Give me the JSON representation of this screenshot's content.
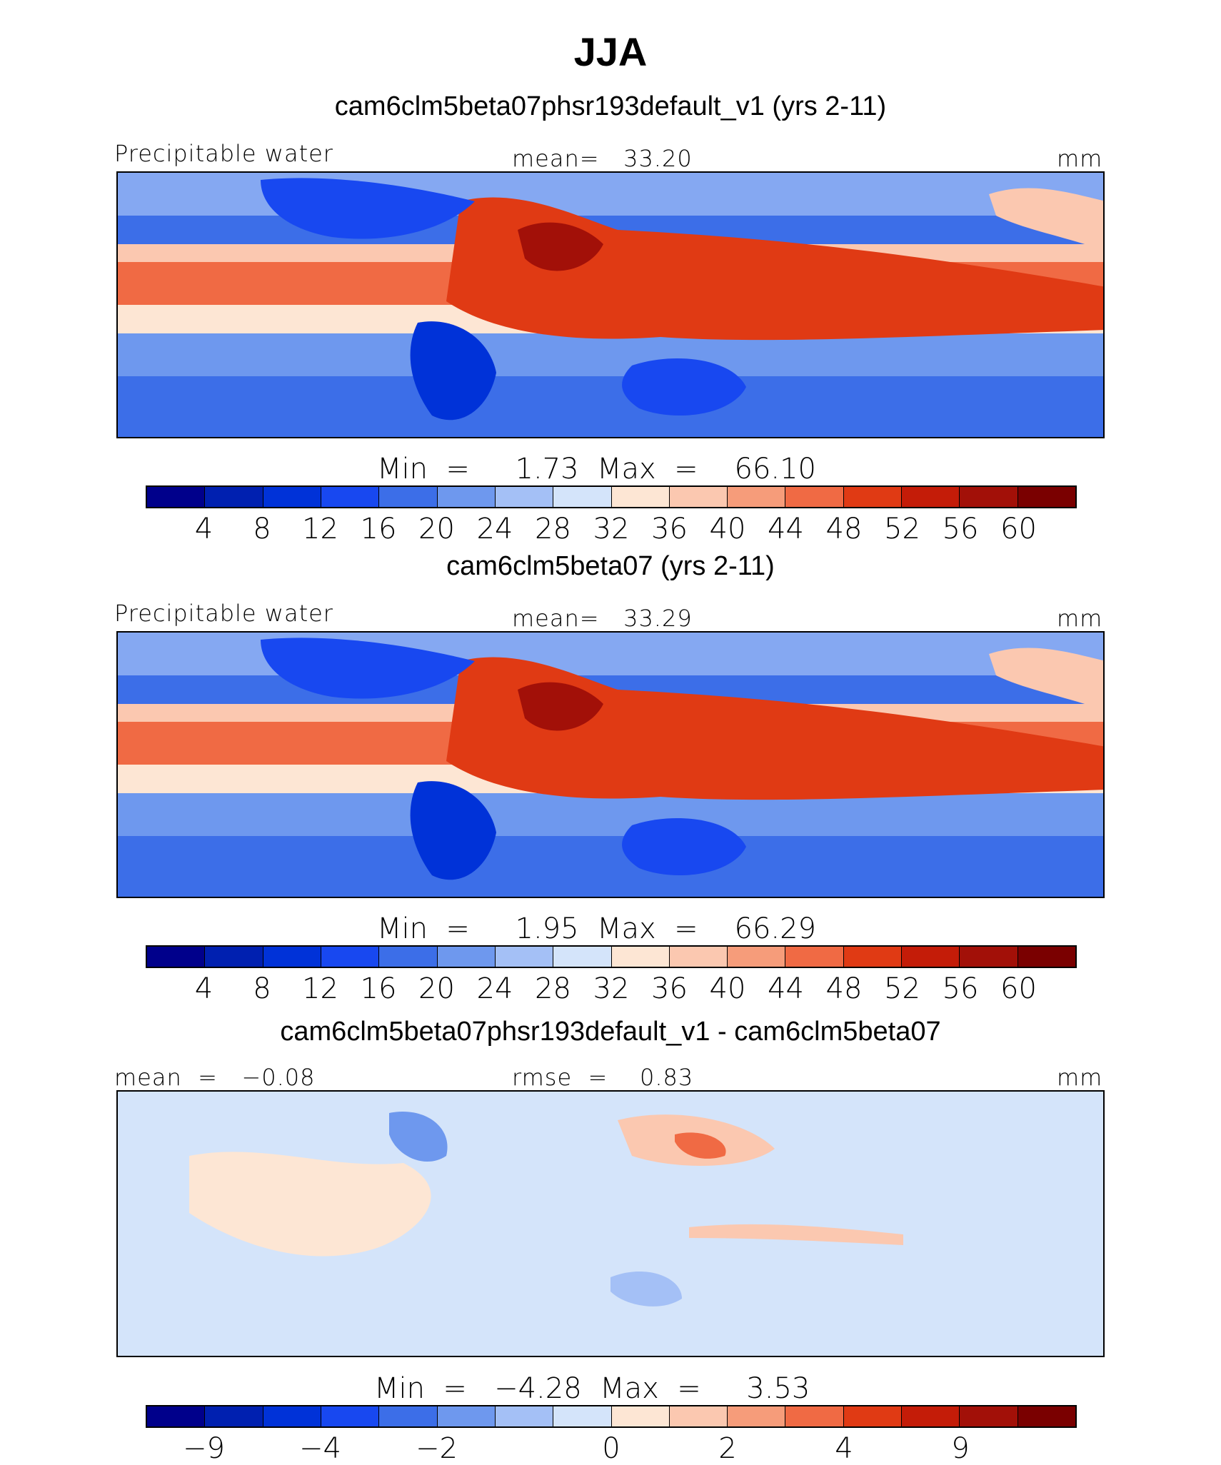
{
  "title": "JJA",
  "panels": [
    {
      "title": "cam6clm5beta07phsr193default_v1 (yrs 2-11)",
      "left_label": "Precipitable water",
      "center_label": "mean=   33.20",
      "right_label": "mm",
      "minmax": "Min  =     1.73  Max  =    66.10",
      "ticks": [
        "4",
        "8",
        "12",
        "16",
        "20",
        "24",
        "28",
        "32",
        "36",
        "40",
        "44",
        "48",
        "52",
        "56",
        "60"
      ],
      "palette": "abs"
    },
    {
      "title": "cam6clm5beta07 (yrs 2-11)",
      "left_label": "Precipitable water",
      "center_label": "mean=   33.29",
      "right_label": "mm",
      "minmax": "Min  =     1.95  Max  =    66.29",
      "ticks": [
        "4",
        "8",
        "12",
        "16",
        "20",
        "24",
        "28",
        "32",
        "36",
        "40",
        "44",
        "48",
        "52",
        "56",
        "60"
      ],
      "palette": "abs"
    },
    {
      "title": "cam6clm5beta07phsr193default_v1 - cam6clm5beta07",
      "left_label": "mean  =   −0.08",
      "center_label": "rmse  =    0.83",
      "right_label": "mm",
      "minmax": "Min  =   −4.28  Max  =     3.53",
      "ticks": [
        "−9",
        "−4",
        "−2",
        "0",
        "2",
        "4",
        "9"
      ],
      "palette": "diff"
    }
  ],
  "colors": {
    "abs": [
      "#00008b",
      "#0020b0",
      "#0032d8",
      "#1848f0",
      "#3c6ee8",
      "#6e98ee",
      "#a4c0f6",
      "#d4e4fa",
      "#fde6d4",
      "#fbc8b0",
      "#f69c7a",
      "#f06a44",
      "#e03a14",
      "#c41c08",
      "#a21008",
      "#7a0000"
    ],
    "diff": [
      "#00008b",
      "#0020b0",
      "#0032d8",
      "#1848f0",
      "#3c6ee8",
      "#6e98ee",
      "#a4c0f6",
      "#d4e4fa",
      "#fde6d4",
      "#fbc8b0",
      "#f69c7a",
      "#f06a44",
      "#e03a14",
      "#c41c08",
      "#a21008",
      "#7a0000"
    ]
  }
}
